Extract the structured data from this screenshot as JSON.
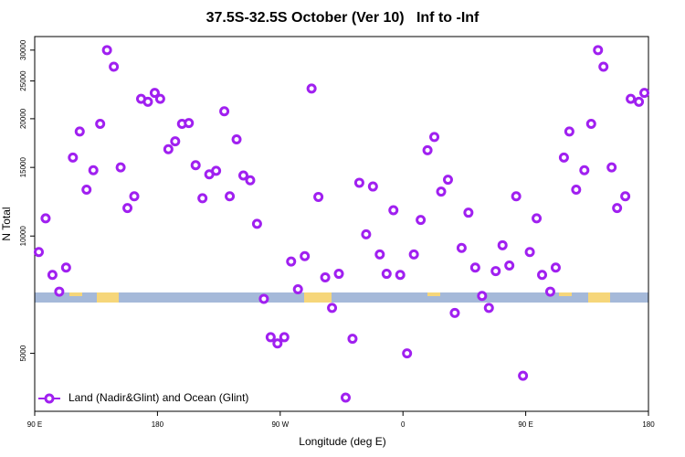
{
  "chart_data": {
    "type": "scatter",
    "title": "37.5S-32.5S October (Ver 10)   Inf to -Inf",
    "x_label": "Longitude (deg E)",
    "y_label": "N Total",
    "log_y": true,
    "grid": false,
    "legend_position": "bottom-left",
    "xlim": [
      90,
      540
    ],
    "ylim": [
      3550,
      32500
    ],
    "xticks": [
      {
        "value": 90,
        "label": "90 E"
      },
      {
        "value": 180,
        "label": "180"
      },
      {
        "value": 270,
        "label": "90 W"
      },
      {
        "value": 360,
        "label": "0"
      },
      {
        "value": 450,
        "label": "90 E"
      },
      {
        "value": 540,
        "label": "180"
      }
    ],
    "yticks": [
      5000,
      10000,
      15000,
      20000,
      25000,
      30000
    ],
    "x": [
      93,
      98,
      103,
      108,
      113,
      118,
      123,
      128,
      133,
      138,
      143,
      148,
      153,
      158,
      163,
      168,
      173,
      178,
      182,
      188,
      193,
      198,
      203,
      208,
      213,
      218,
      223,
      229,
      233,
      238,
      243,
      248,
      253,
      258,
      263,
      268,
      273,
      278,
      283,
      288,
      293,
      298,
      303,
      308,
      313,
      318,
      323,
      328,
      333,
      338,
      343,
      348,
      353,
      358,
      363,
      368,
      373,
      378,
      383,
      388,
      393,
      398,
      403,
      408,
      413,
      418,
      423,
      428,
      433,
      438,
      443,
      448,
      453,
      458,
      462,
      468,
      472,
      478,
      482,
      487,
      493,
      498,
      503,
      507,
      513,
      517,
      523,
      527,
      533,
      537
    ],
    "series": [
      {
        "name": "Land (Nadir&Glint) and Ocean (Glint)",
        "color": "#a020f0",
        "values": [
          9100,
          11100,
          7950,
          7200,
          8300,
          15900,
          18550,
          13150,
          14750,
          19400,
          30000,
          27200,
          15000,
          11800,
          12650,
          22500,
          22100,
          23300,
          22500,
          16700,
          17500,
          19400,
          19500,
          15200,
          12500,
          14400,
          14700,
          20900,
          12650,
          17700,
          14300,
          13900,
          10750,
          6900,
          5500,
          5300,
          5500,
          8600,
          7300,
          8880,
          23900,
          12600,
          7830,
          6540,
          8000,
          3850,
          5450,
          13700,
          10100,
          13400,
          8970,
          8000,
          11650,
          7950,
          5000,
          8970,
          11000,
          16600,
          17950,
          13000,
          13950,
          6350,
          9320,
          11480,
          8300,
          7020,
          6540,
          8130,
          9470,
          8400,
          12650,
          4380,
          9100,
          11100,
          7950,
          7200,
          8300,
          15900,
          18550,
          13150,
          14750,
          19400,
          30000,
          27200,
          15000,
          11800,
          12650,
          22500,
          22100,
          23300
        ]
      }
    ]
  }
}
